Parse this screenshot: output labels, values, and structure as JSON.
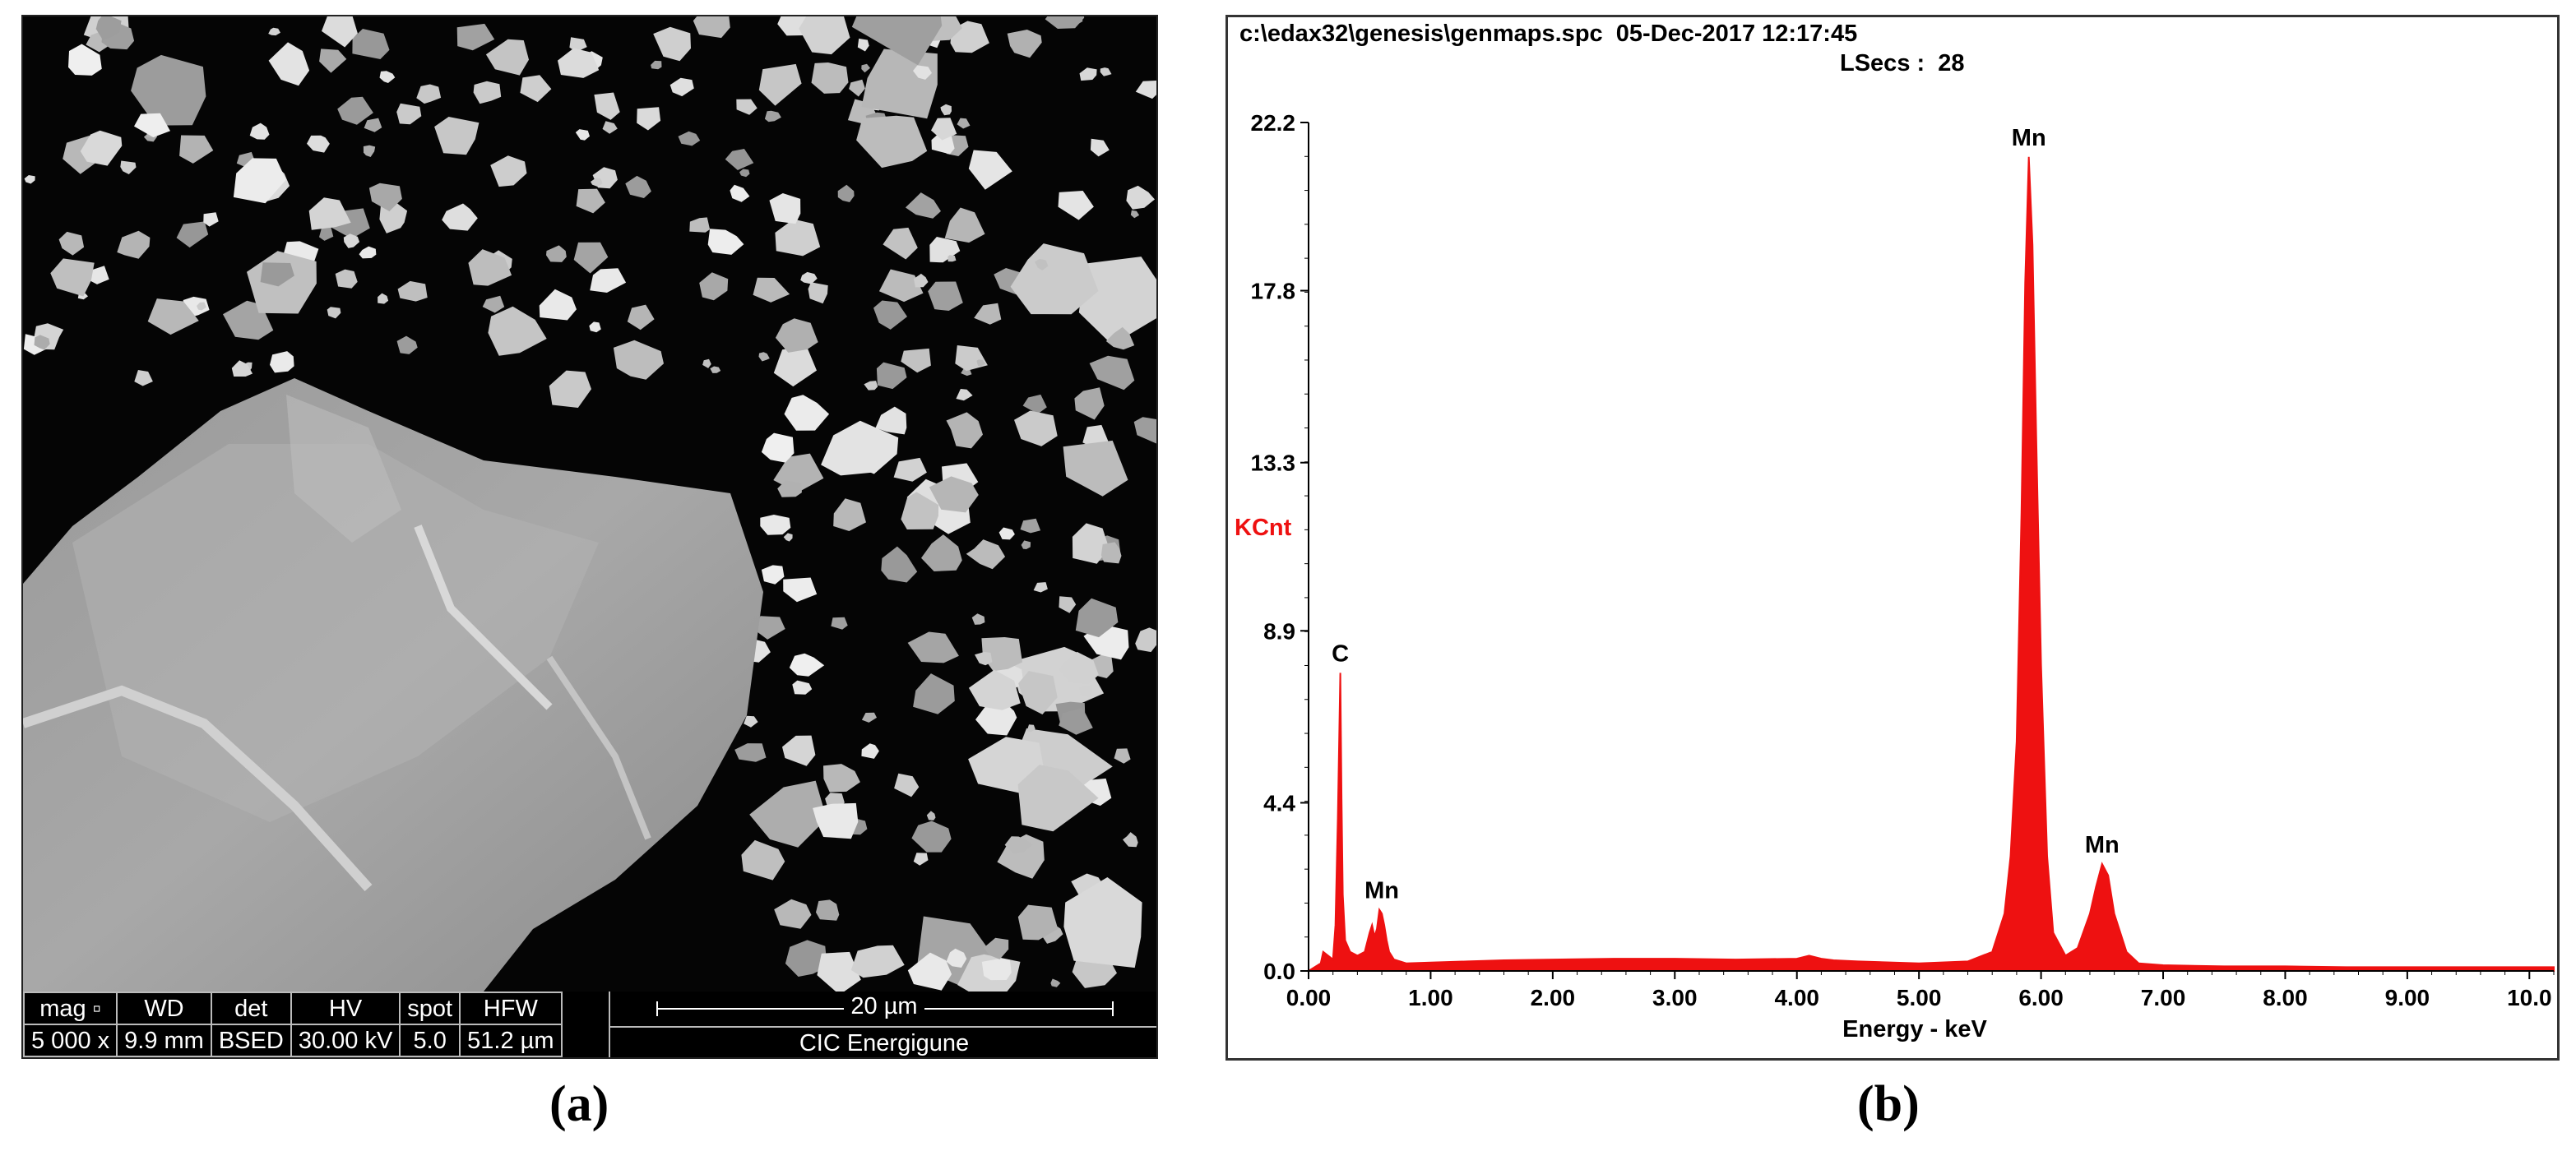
{
  "panels": {
    "a": {
      "label": "(a)"
    },
    "b": {
      "label": "(b)"
    }
  },
  "sem_info": {
    "headers": [
      "mag ▫",
      "WD",
      "det",
      "HV",
      "spot",
      "HFW"
    ],
    "values": [
      "5 000 x",
      "9.9 mm",
      "BSED",
      "30.00 kV",
      "5.0",
      "51.2 µm"
    ],
    "scale_bar": "20 µm",
    "institution": "CIC Energigune"
  },
  "spectrum_header": {
    "file": "c:\\edax32\\genesis\\genmaps.spc",
    "date": "05-Dec-2017 12:17:45",
    "lsecs_label": "LSecs :",
    "lsecs_value": "28"
  },
  "chart_data": {
    "type": "area",
    "title": "",
    "xlabel": "Energy - keV",
    "ylabel": "KCnt",
    "xlim": [
      0,
      10.2
    ],
    "ylim": [
      0,
      22.2
    ],
    "x_ticks": [
      "0.00",
      "1.00",
      "2.00",
      "3.00",
      "4.00",
      "5.00",
      "6.00",
      "7.00",
      "8.00",
      "9.00",
      "10.0"
    ],
    "y_ticks": [
      "0.0",
      "4.4",
      "8.9",
      "13.3",
      "17.8",
      "22.2"
    ],
    "series": [
      {
        "color": "#ee1111",
        "x": [
          0.0,
          0.1,
          0.12,
          0.2,
          0.22,
          0.24,
          0.26,
          0.27,
          0.28,
          0.3,
          0.34,
          0.4,
          0.46,
          0.5,
          0.52,
          0.54,
          0.56,
          0.58,
          0.6,
          0.62,
          0.64,
          0.66,
          0.7,
          0.8,
          1.0,
          1.3,
          1.6,
          2.0,
          2.5,
          3.0,
          3.5,
          4.0,
          4.1,
          4.2,
          4.3,
          4.5,
          5.0,
          5.4,
          5.6,
          5.7,
          5.75,
          5.8,
          5.84,
          5.87,
          5.9,
          5.93,
          5.96,
          6.0,
          6.05,
          6.1,
          6.2,
          6.3,
          6.4,
          6.45,
          6.5,
          6.55,
          6.6,
          6.7,
          6.8,
          7.0,
          7.5,
          8.0,
          8.5,
          9.0,
          9.5,
          10.0,
          10.2
        ],
        "values": [
          0.0,
          0.2,
          0.5,
          0.3,
          1.2,
          4.0,
          7.8,
          4.5,
          2.0,
          0.8,
          0.5,
          0.4,
          0.5,
          1.0,
          1.2,
          0.9,
          1.1,
          1.6,
          1.5,
          1.2,
          0.8,
          0.5,
          0.3,
          0.2,
          0.22,
          0.25,
          0.28,
          0.3,
          0.32,
          0.32,
          0.3,
          0.32,
          0.4,
          0.32,
          0.28,
          0.25,
          0.2,
          0.25,
          0.5,
          1.5,
          3.0,
          6.0,
          12.0,
          18.0,
          21.3,
          19.0,
          14.0,
          8.0,
          3.0,
          1.0,
          0.4,
          0.6,
          1.5,
          2.2,
          2.8,
          2.5,
          1.5,
          0.5,
          0.2,
          0.15,
          0.12,
          0.12,
          0.1,
          0.1,
          0.1,
          0.1,
          0.1
        ]
      }
    ],
    "annotations": [
      {
        "text": "C",
        "x": 0.26,
        "y": 7.8
      },
      {
        "text": "Mn",
        "x": 0.6,
        "y": 1.6
      },
      {
        "text": "Mn",
        "x": 5.9,
        "y": 21.3
      },
      {
        "text": "Mn",
        "x": 6.5,
        "y": 2.8
      }
    ],
    "grid": false,
    "legend": "none"
  }
}
